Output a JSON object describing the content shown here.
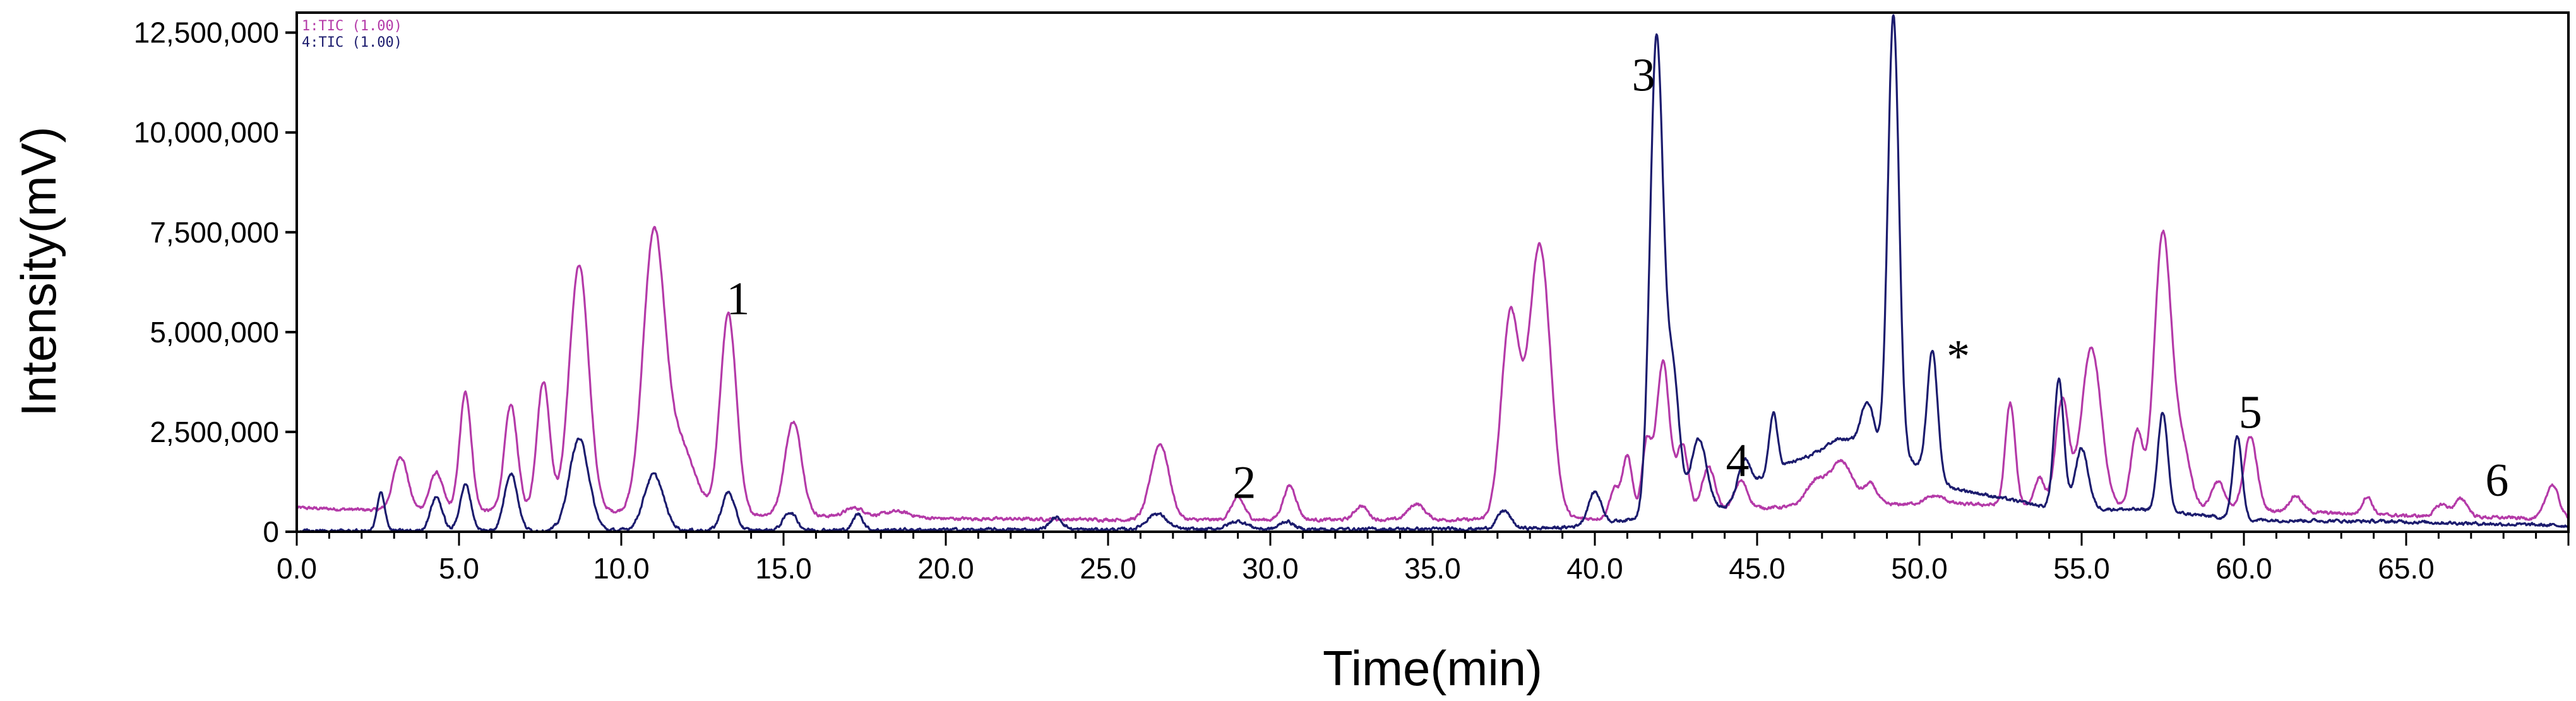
{
  "chart_data": {
    "type": "line",
    "xlabel": "Time(min)",
    "ylabel": "Intensity(mV)",
    "xlim": [
      0,
      70
    ],
    "ylim": [
      0,
      13000000
    ],
    "x_ticks": [
      0,
      5,
      10,
      15,
      20,
      25,
      30,
      35,
      40,
      45,
      50,
      55,
      60,
      65
    ],
    "x_tick_labels": [
      "0.0",
      "5.0",
      "10.0",
      "15.0",
      "20.0",
      "25.0",
      "30.0",
      "35.0",
      "40.0",
      "45.0",
      "50.0",
      "55.0",
      "60.0",
      "65.0"
    ],
    "y_ticks": [
      0,
      2500000,
      5000000,
      7500000,
      10000000,
      12500000
    ],
    "y_tick_labels": [
      "0",
      "2,500,000",
      "5,000,000",
      "7,500,000",
      "10,000,000",
      "12,500,000"
    ],
    "grid": false,
    "legend_position": "top-left",
    "legend": [
      "1:TIC (1.00)",
      "4:TIC (1.00)"
    ],
    "series": [
      {
        "name": "1:TIC (1.00)",
        "color": "#b43aa8",
        "baseline": [
          [
            0,
            600000
          ],
          [
            2,
            550000
          ],
          [
            10,
            500000
          ],
          [
            20,
            330000
          ],
          [
            26,
            300000
          ],
          [
            36,
            300000
          ],
          [
            40,
            330000
          ],
          [
            45,
            600000
          ],
          [
            50,
            700000
          ],
          [
            55,
            650000
          ],
          [
            60,
            550000
          ],
          [
            65,
            400000
          ],
          [
            70,
            320000
          ]
        ],
        "peaks": [
          [
            3.2,
            1350000,
            0.22
          ],
          [
            4.3,
            950000,
            0.2
          ],
          [
            5.2,
            2950000,
            0.18
          ],
          [
            6.6,
            2650000,
            0.2
          ],
          [
            7.6,
            3250000,
            0.2
          ],
          [
            8.7,
            6150000,
            0.3
          ],
          [
            11.0,
            6750000,
            0.33
          ],
          [
            11.8,
            1700000,
            0.45
          ],
          [
            13.3,
            5000000,
            0.25
          ],
          [
            15.3,
            2350000,
            0.26
          ],
          [
            17.2,
            220000,
            0.3
          ],
          [
            18.5,
            150000,
            0.4
          ],
          [
            26.6,
            1900000,
            0.28
          ],
          [
            29.0,
            550000,
            0.2
          ],
          [
            30.6,
            850000,
            0.2
          ],
          [
            32.8,
            350000,
            0.2
          ],
          [
            34.5,
            400000,
            0.25
          ],
          [
            37.4,
            5100000,
            0.28
          ],
          [
            38.3,
            6850000,
            0.33
          ],
          [
            40.6,
            700000,
            0.15
          ],
          [
            41.0,
            1500000,
            0.15
          ],
          [
            41.6,
            1800000,
            0.15
          ],
          [
            42.1,
            3800000,
            0.2
          ],
          [
            42.7,
            1700000,
            0.18
          ],
          [
            43.5,
            1100000,
            0.2
          ],
          [
            44.5,
            700000,
            0.2
          ],
          [
            46.8,
            600000,
            0.3
          ],
          [
            47.6,
            1100000,
            0.35
          ],
          [
            48.5,
            500000,
            0.2
          ],
          [
            50.5,
            200000,
            0.3
          ],
          [
            52.8,
            2550000,
            0.15
          ],
          [
            53.7,
            700000,
            0.15
          ],
          [
            54.4,
            2650000,
            0.2
          ],
          [
            55.3,
            3950000,
            0.3
          ],
          [
            56.7,
            1900000,
            0.18
          ],
          [
            57.5,
            6850000,
            0.26
          ],
          [
            58.1,
            1500000,
            0.25
          ],
          [
            59.2,
            700000,
            0.2
          ],
          [
            60.2,
            1850000,
            0.2
          ],
          [
            61.6,
            400000,
            0.2
          ],
          [
            63.8,
            450000,
            0.15
          ],
          [
            66.1,
            300000,
            0.2
          ],
          [
            66.7,
            450000,
            0.2
          ],
          [
            69.5,
            850000,
            0.2
          ]
        ]
      },
      {
        "name": "4:TIC (1.00)",
        "color": "#1c1c6e",
        "baseline": [
          [
            0,
            20000
          ],
          [
            2,
            20000
          ],
          [
            20,
            50000
          ],
          [
            36,
            70000
          ],
          [
            39,
            100000
          ],
          [
            44,
            600000
          ],
          [
            45.5,
            1600000
          ],
          [
            46.5,
            1850000
          ],
          [
            48,
            2100000
          ],
          [
            49.5,
            1900000
          ],
          [
            51,
            1100000
          ],
          [
            54,
            600000
          ],
          [
            57,
            550000
          ],
          [
            60,
            300000
          ],
          [
            65,
            250000
          ],
          [
            70,
            150000
          ]
        ],
        "peaks": [
          [
            2.6,
            950000,
            0.12
          ],
          [
            4.3,
            850000,
            0.18
          ],
          [
            5.2,
            1150000,
            0.17
          ],
          [
            6.6,
            1450000,
            0.2
          ],
          [
            8.7,
            2300000,
            0.3
          ],
          [
            11.0,
            1400000,
            0.3
          ],
          [
            13.3,
            950000,
            0.2
          ],
          [
            15.2,
            450000,
            0.2
          ],
          [
            17.3,
            400000,
            0.15
          ],
          [
            23.4,
            300000,
            0.2
          ],
          [
            26.5,
            400000,
            0.3
          ],
          [
            29.0,
            200000,
            0.3
          ],
          [
            30.5,
            200000,
            0.2
          ],
          [
            37.2,
            450000,
            0.2
          ],
          [
            40.0,
            800000,
            0.2
          ],
          [
            41.9,
            11900000,
            0.2
          ],
          [
            42.4,
            3500000,
            0.2
          ],
          [
            43.2,
            1800000,
            0.25
          ],
          [
            44.6,
            800000,
            0.18
          ],
          [
            45.5,
            1400000,
            0.12
          ],
          [
            47.5,
            300000,
            0.4
          ],
          [
            48.4,
            1200000,
            0.2
          ],
          [
            49.2,
            11000000,
            0.17
          ],
          [
            50.4,
            3100000,
            0.16
          ],
          [
            54.3,
            3200000,
            0.15
          ],
          [
            55.0,
            1500000,
            0.2
          ],
          [
            57.5,
            2500000,
            0.15
          ],
          [
            59.8,
            2100000,
            0.14
          ]
        ]
      }
    ],
    "annotations": [
      {
        "text": "1",
        "x": 13.6,
        "y": 5450000
      },
      {
        "text": "2",
        "x": 29.2,
        "y": 850000
      },
      {
        "text": "3",
        "x": 41.5,
        "y": 11050000
      },
      {
        "text": "4",
        "x": 44.4,
        "y": 1400000
      },
      {
        "text": "*",
        "x": 51.2,
        "y": 4000000
      },
      {
        "text": "5",
        "x": 60.2,
        "y": 2600000
      },
      {
        "text": "6",
        "x": 67.8,
        "y": 900000
      }
    ]
  }
}
